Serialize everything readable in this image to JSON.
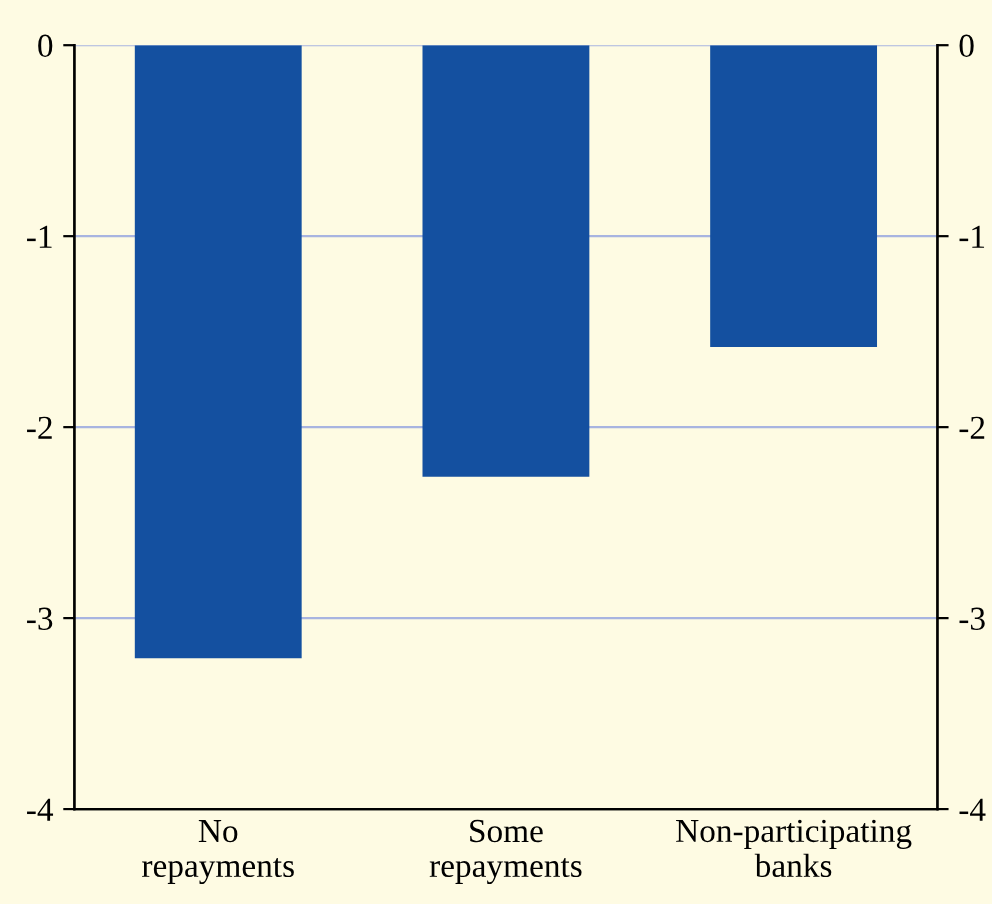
{
  "chart_data": {
    "type": "bar",
    "categories": [
      "No repayments",
      "Some repayments",
      "Non-participating banks"
    ],
    "values": [
      -3.21,
      -2.26,
      -1.58
    ],
    "color": "#1450a0",
    "ylim": [
      -4,
      0
    ],
    "yticks": [
      -4,
      -3,
      -2,
      -1,
      0
    ],
    "y2lim": [
      -4,
      0
    ],
    "y2ticks": [
      -4,
      -3,
      -2,
      -1,
      0
    ],
    "grid": true
  }
}
